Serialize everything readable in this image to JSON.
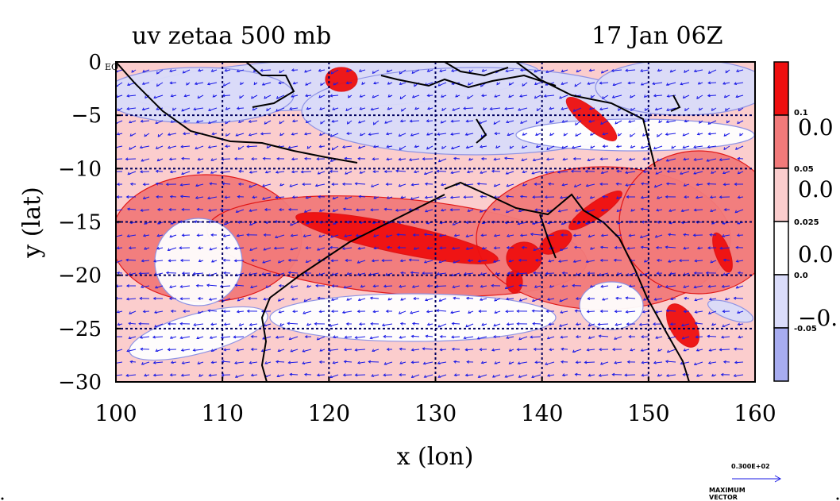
{
  "title": {
    "left": "uv zetaa 500 mb",
    "right": "17 Jan 06Z"
  },
  "chart_data": {
    "type": "heatmap",
    "title": "uv zetaa 500 mb",
    "date": "17 Jan 06Z",
    "xlabel": "x (lon)",
    "ylabel": "y (lat)",
    "xlim": [
      100,
      160
    ],
    "ylim": [
      -30,
      0
    ],
    "x_ticks": [
      100,
      110,
      120,
      130,
      140,
      150,
      160
    ],
    "x_tick_labels": [
      "100",
      "110",
      "120",
      "130",
      "140",
      "150",
      "160"
    ],
    "y_ticks": [
      0,
      -5,
      -10,
      -15,
      -20,
      -25,
      -30
    ],
    "y_tick_labels": [
      "0",
      "−5",
      "−10",
      "−15",
      "−20",
      "−25",
      "−30"
    ],
    "y_zero_suffix": "EQ",
    "grid": true,
    "grid_style": "dashed",
    "overlay": "wind vectors",
    "colorbar": {
      "placement": "right",
      "levels": [
        -0.05,
        0.0,
        0.025,
        0.05,
        0.1
      ],
      "level_labels": [
        "-0.05",
        "0.0",
        "0.025",
        "0.05",
        "0.1"
      ],
      "large_labels": [
        "0.0",
        "0.0",
        "0.0",
        "−0."
      ],
      "colors": [
        "#a7acf0",
        "#dadcfa",
        "#ffffff",
        "#fbcdcd",
        "#f27a7a",
        "#ef0f0f"
      ]
    },
    "max_vector": {
      "value_label": "0.300E+02",
      "caption": "MAXIMUM VECTOR"
    },
    "colors": {
      "grid": "#000060",
      "vector": "#1a1ae6",
      "contour": "#e01010",
      "coast": "#000000"
    }
  }
}
